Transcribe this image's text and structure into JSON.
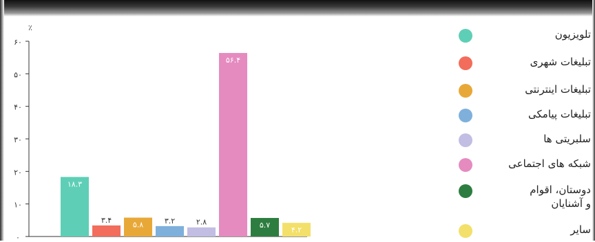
{
  "chart_data": {
    "type": "bar",
    "ylabel": "٪",
    "ylim": [
      0,
      60
    ],
    "y_ticks": [
      "۰",
      "۱۰",
      "۲۰",
      "۳۰",
      "۴۰",
      "۵۰",
      "۶۰"
    ],
    "grid": false,
    "legend_position": "right",
    "categories": [
      "تلویزیون",
      "تبلیغات شهری",
      "تبلیغات اینترنتی",
      "تبلیغات پیامکی",
      "سلبریتی ها",
      "شبکه های اجتماعی",
      "دوستان، اقوام و آشنایان",
      "سایر"
    ],
    "values": [
      18.3,
      3.4,
      5.8,
      3.2,
      2.8,
      56.4,
      5.7,
      4.2
    ],
    "value_labels": [
      "۱۸.۳",
      "۳.۴",
      "۵.۸",
      "۳.۲",
      "۲.۸",
      "۵۶.۴",
      "۵.۷",
      "۴.۲"
    ],
    "colors": [
      "#5ecfb6",
      "#f26d5b",
      "#e8a838",
      "#7fb0dc",
      "#c2bde3",
      "#e58bc0",
      "#2e7d40",
      "#f3e06a"
    ]
  },
  "legend": {
    "items": [
      {
        "label": "تلویزیون",
        "color": "#5ecfb6"
      },
      {
        "label": "تبلیغات شهری",
        "color": "#f26d5b"
      },
      {
        "label": "تبلیغات اینترنتی",
        "color": "#e8a838"
      },
      {
        "label": "تبلیغات پیامکی",
        "color": "#7fb0dc"
      },
      {
        "label": "سلبریتی ها",
        "color": "#c2bde3"
      },
      {
        "label": "شبکه های اجتماعی",
        "color": "#e58bc0"
      },
      {
        "label": "دوستان، اقوام\nو آشنایان",
        "color": "#2e7d40"
      },
      {
        "label": "سایر",
        "color": "#f3e06a"
      }
    ]
  }
}
